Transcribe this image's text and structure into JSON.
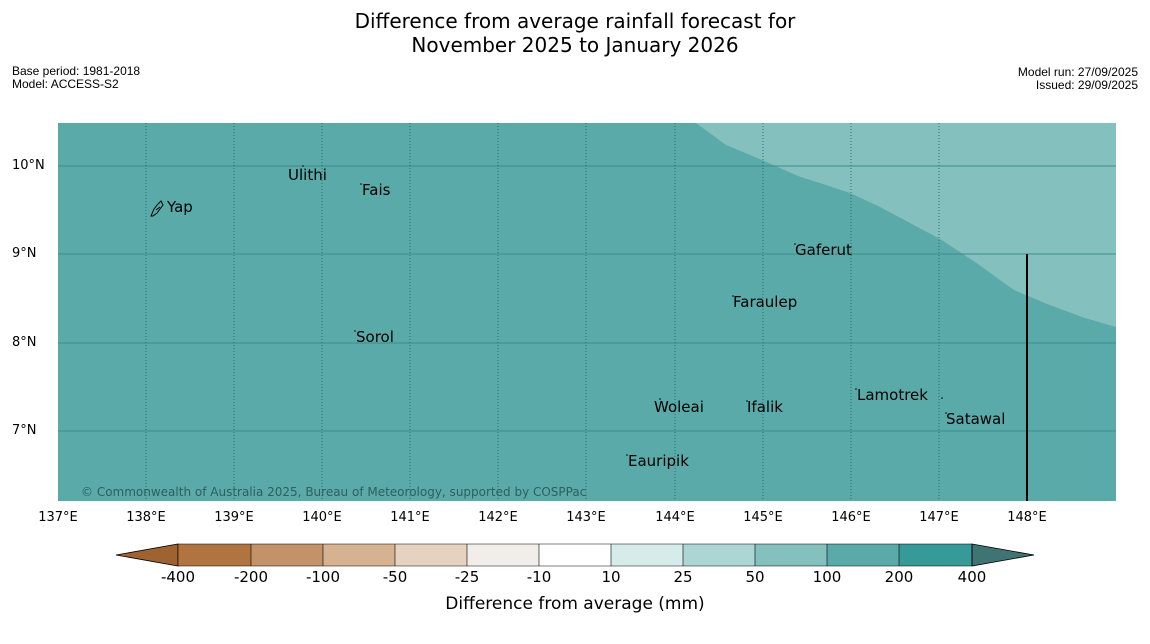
{
  "title_line1": "Difference from average rainfall forecast for",
  "title_line2": "November 2025 to January 2026",
  "meta_left": {
    "base_period": "Base period: 1981-2018",
    "model": "Model: ACCESS-S2"
  },
  "meta_right": {
    "model_run": "Model run: 27/09/2025",
    "issued": "Issued: 29/09/2025"
  },
  "copyright": "© Commonwealth of Australia 2025, Bureau of Meteorology, supported by COSPPac",
  "lat_labels": [
    "10°N",
    "9°N",
    "8°N",
    "7°N"
  ],
  "lon_labels": [
    "137°E",
    "138°E",
    "139°E",
    "140°E",
    "141°E",
    "142°E",
    "143°E",
    "144°E",
    "145°E",
    "146°E",
    "147°E",
    "148°E"
  ],
  "places": [
    "Ulithi",
    "Fais",
    "Yap",
    "Gaferut",
    "Faraulep",
    "Sorol",
    "Lamotrek",
    "Woleai",
    "Ifalik",
    "Satawal",
    "Eauripik"
  ],
  "colorbar": {
    "title": "Difference from average (mm)",
    "tick_labels": [
      "-400",
      "-200",
      "-100",
      "-50",
      "-25",
      "-10",
      "10",
      "25",
      "50",
      "100",
      "200",
      "400"
    ],
    "colors": [
      "#9e6330",
      "#b07440",
      "#c49268",
      "#d6b290",
      "#e5d2c0",
      "#f1eee9",
      "#ffffff",
      "#d6ecea",
      "#acd6d4",
      "#84c0be",
      "#5aaaaa",
      "#369a98",
      "#3f7472"
    ]
  },
  "map_colors": {
    "main": "#5aaaaa",
    "light": "#84c0be"
  }
}
